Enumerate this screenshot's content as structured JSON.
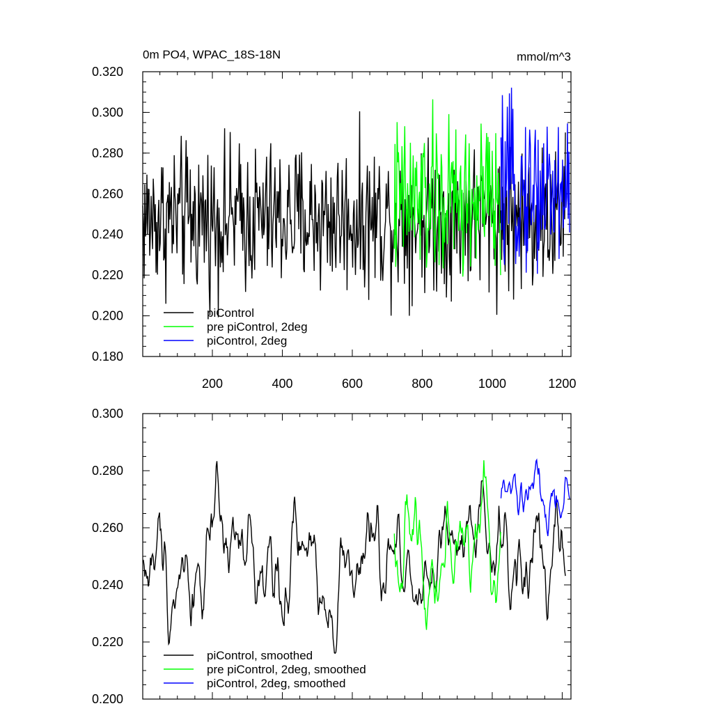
{
  "chart_data": [
    {
      "type": "line",
      "title": "0m PO4, WPAC_18S-18N",
      "units": "mmol/m^3",
      "xlim": [
        1,
        1225
      ],
      "ylim": [
        0.18,
        0.32
      ],
      "yticks": [
        "0.320",
        "0.300",
        "0.280",
        "0.260",
        "0.240",
        "0.220",
        "0.200",
        "0.180"
      ],
      "xticks": [
        "200",
        "400",
        "600",
        "800",
        "1000",
        "1200"
      ],
      "series": [
        {
          "name": "piControl",
          "color": "#000000",
          "x_start": 1,
          "x_end": 1210,
          "mean": 0.248,
          "amp": 0.018
        },
        {
          "name": "pre piControl, 2deg",
          "color": "#00ff00",
          "x_start": 720,
          "x_end": 1025,
          "mean": 0.256,
          "amp": 0.02
        },
        {
          "name": "piControl, 2deg",
          "color": "#0000ff",
          "x_start": 1025,
          "x_end": 1222,
          "mean": 0.262,
          "amp": 0.019
        }
      ],
      "legend": [
        "piControl",
        "pre piControl, 2deg",
        "piControl, 2deg"
      ],
      "legend_position": "bottom-left"
    },
    {
      "type": "line",
      "xlim": [
        1,
        1225
      ],
      "ylim": [
        0.2,
        0.3
      ],
      "yticks": [
        "0.300",
        "0.280",
        "0.260",
        "0.240",
        "0.220",
        "0.200"
      ],
      "series": [
        {
          "name": "piControl, smoothed",
          "color": "#000000",
          "x_start": 1,
          "x_end": 1210,
          "mean": 0.247,
          "amp": 0.011
        },
        {
          "name": "pre piControl, 2deg, smoothed",
          "color": "#00ff00",
          "x_start": 720,
          "x_end": 1025,
          "mean": 0.255,
          "amp": 0.011
        },
        {
          "name": "piControl, 2deg, smoothed",
          "color": "#0000ff",
          "x_start": 1025,
          "x_end": 1222,
          "mean": 0.267,
          "amp": 0.008
        }
      ],
      "legend": [
        "piControl, smoothed",
        "pre piControl, 2deg, smoothed",
        "piControl, 2deg, smoothed"
      ],
      "legend_position": "bottom-left"
    }
  ]
}
